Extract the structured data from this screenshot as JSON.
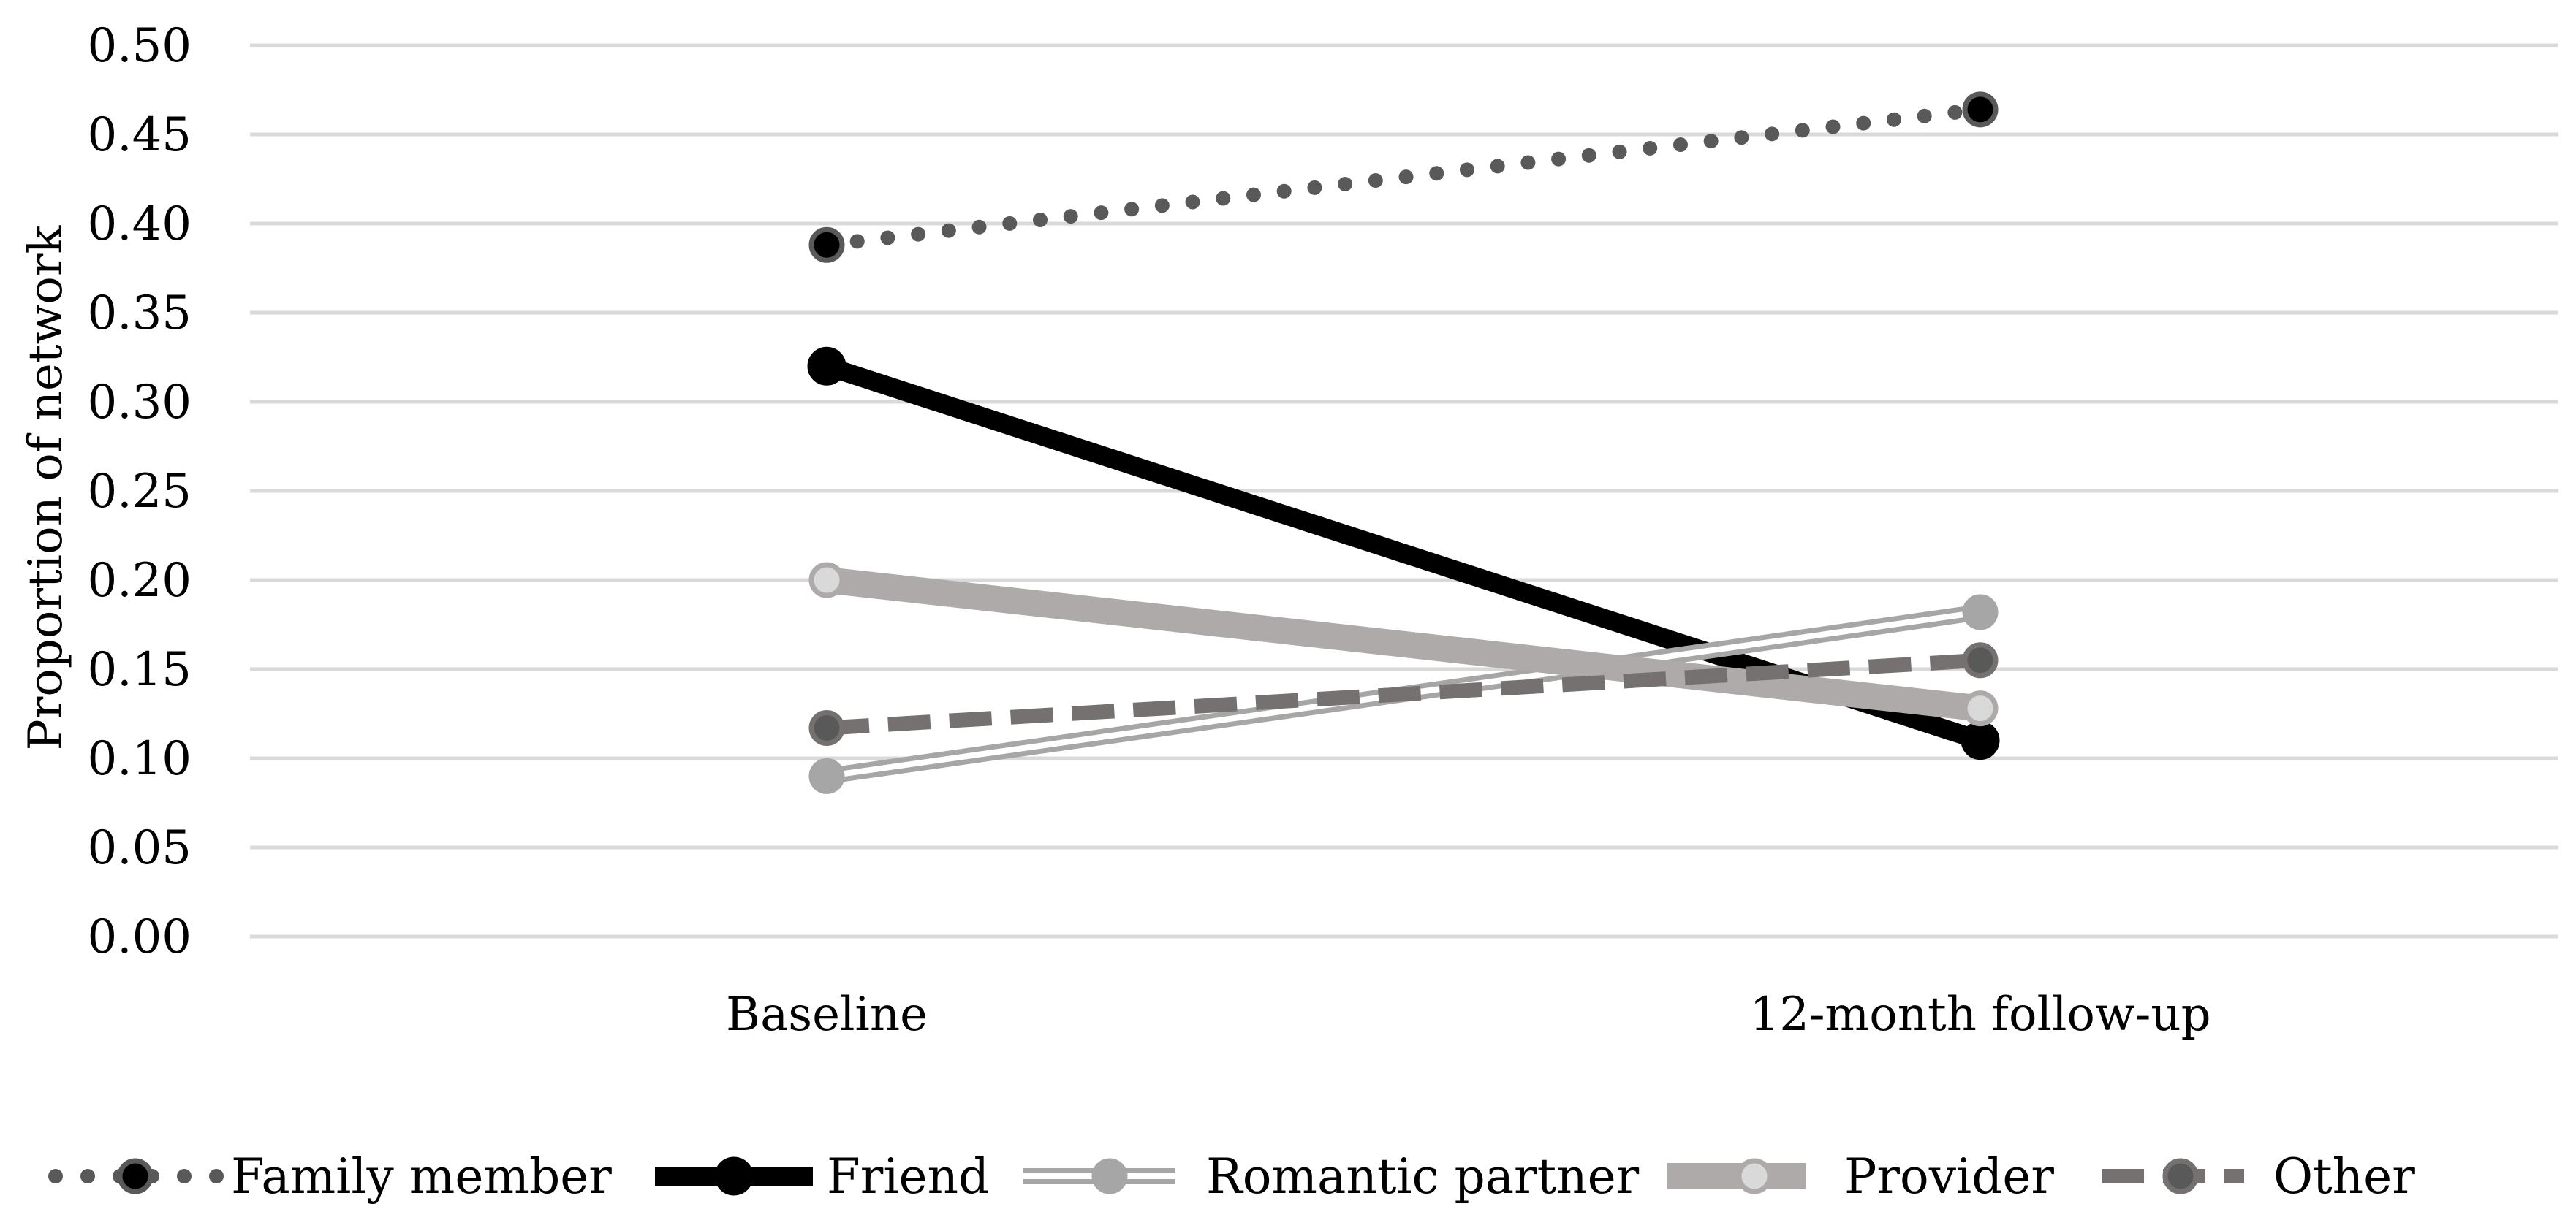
{
  "chart_data": {
    "type": "line",
    "ylabel": "Proportion of network",
    "xlabel": "",
    "ylim": [
      0,
      0.5
    ],
    "y_ticks": [
      "0.00",
      "0.05",
      "0.10",
      "0.15",
      "0.20",
      "0.25",
      "0.30",
      "0.35",
      "0.40",
      "0.45",
      "0.50"
    ],
    "x": [
      "Baseline",
      "12-month follow-up"
    ],
    "grid": true,
    "legend_position": "bottom",
    "series": [
      {
        "name": "Family member",
        "values": [
          0.388,
          0.464
        ],
        "style": "dotted",
        "line_color": "#595959",
        "marker_fill": "#000000",
        "marker_stroke": "#595959"
      },
      {
        "name": "Friend",
        "values": [
          0.32,
          0.11
        ],
        "style": "thick-solid",
        "line_color": "#000000",
        "marker_fill": "#000000",
        "marker_stroke": "#000000"
      },
      {
        "name": "Romantic partner",
        "values": [
          0.09,
          0.182
        ],
        "style": "double",
        "line_color": "#a6a6a6",
        "marker_fill": "#a6a6a6",
        "marker_stroke": "#a6a6a6"
      },
      {
        "name": "Provider",
        "values": [
          0.2,
          0.128
        ],
        "style": "wide-solid",
        "line_color": "#aeaaaa",
        "marker_fill": "#d9d9d9",
        "marker_stroke": "#aeaaaa"
      },
      {
        "name": "Other",
        "values": [
          0.117,
          0.155
        ],
        "style": "dashed",
        "line_color": "#767171",
        "marker_fill": "#595959",
        "marker_stroke": "#767171"
      }
    ]
  }
}
